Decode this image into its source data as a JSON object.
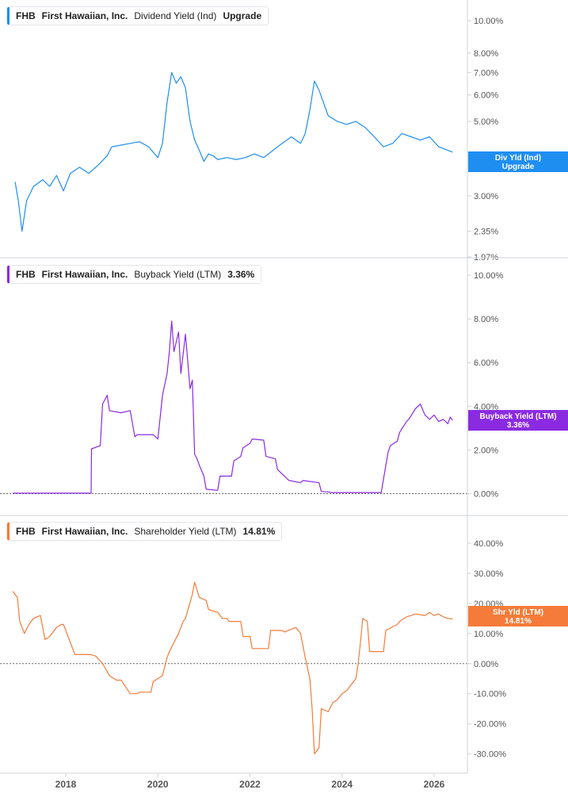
{
  "ticker": "FHB",
  "company": "First Hawaiian, Inc.",
  "colors": {
    "dividend": "#1f8ef1",
    "buyback": "#8a2be2",
    "shareholder": "#f47b3a",
    "grid_axis": "#cfd3d8",
    "tick_text": "#555555"
  },
  "panels": {
    "dividend": {
      "legend_metric": "Dividend Yield (Ind)",
      "legend_value": "Upgrade",
      "badge_line1": "Div Yld (Ind)",
      "badge_line2": "Upgrade"
    },
    "buyback": {
      "legend_metric": "Buyback Yield (LTM)",
      "legend_value": "3.36%",
      "badge_line1": "Buyback Yield (LTM)",
      "badge_line2": "3.36%"
    },
    "shareholder": {
      "legend_metric": "Shareholder Yield (LTM)",
      "legend_value": "14.81%",
      "badge_line1": "Shr Yld (LTM)",
      "badge_line2": "14.81%"
    }
  },
  "chart_data": [
    {
      "type": "line",
      "name": "Dividend Yield (Ind)",
      "scale": "log",
      "ylim": [
        1.97,
        10.0
      ],
      "xlim": [
        2016.85,
        2026.45
      ],
      "x_ticks": [
        "2018",
        "2020",
        "2022",
        "2024",
        "2026"
      ],
      "y_ticks": [
        {
          "v": 10.0,
          "label": "10.00%"
        },
        {
          "v": 8.0,
          "label": "8.00%"
        },
        {
          "v": 7.0,
          "label": "7.00%"
        },
        {
          "v": 6.0,
          "label": "6.00%"
        },
        {
          "v": 5.0,
          "label": "5.00%"
        },
        {
          "v": 3.0,
          "label": "3.00%"
        },
        {
          "v": 2.35,
          "label": "2.35%"
        },
        {
          "v": 1.97,
          "label": "1.97%"
        }
      ],
      "x": [
        2016.9,
        2016.97,
        2017.05,
        2017.15,
        2017.3,
        2017.5,
        2017.65,
        2017.8,
        2017.95,
        2018.1,
        2018.3,
        2018.5,
        2018.7,
        2018.9,
        2019.0,
        2019.2,
        2019.4,
        2019.6,
        2019.8,
        2020.0,
        2020.1,
        2020.2,
        2020.3,
        2020.4,
        2020.5,
        2020.6,
        2020.7,
        2020.8,
        2020.9,
        2021.0,
        2021.1,
        2021.2,
        2021.3,
        2021.5,
        2021.7,
        2021.9,
        2022.1,
        2022.3,
        2022.5,
        2022.7,
        2022.9,
        2023.1,
        2023.2,
        2023.3,
        2023.4,
        2023.5,
        2023.7,
        2023.9,
        2024.1,
        2024.3,
        2024.5,
        2024.7,
        2024.9,
        2025.1,
        2025.3,
        2025.5,
        2025.7,
        2025.9,
        2026.1,
        2026.3,
        2026.4
      ],
      "values": [
        3.3,
        2.9,
        2.35,
        2.9,
        3.2,
        3.35,
        3.2,
        3.45,
        3.1,
        3.5,
        3.65,
        3.5,
        3.7,
        3.95,
        4.2,
        4.25,
        4.3,
        4.35,
        4.2,
        3.9,
        4.3,
        5.7,
        7.0,
        6.5,
        6.8,
        6.3,
        5.0,
        4.4,
        4.1,
        3.8,
        4.0,
        3.95,
        3.85,
        3.9,
        3.85,
        3.9,
        4.0,
        3.9,
        4.1,
        4.3,
        4.5,
        4.3,
        4.6,
        5.4,
        6.6,
        6.2,
        5.2,
        5.0,
        4.9,
        5.0,
        4.8,
        4.5,
        4.2,
        4.3,
        4.6,
        4.5,
        4.4,
        4.5,
        4.2,
        4.1,
        4.05
      ]
    },
    {
      "type": "line",
      "name": "Buyback Yield (LTM)",
      "scale": "linear",
      "ylim": [
        -1.0,
        10.0
      ],
      "xlim": [
        2016.85,
        2026.45
      ],
      "x_ticks": [
        "2018",
        "2020",
        "2022",
        "2024",
        "2026"
      ],
      "y_ticks": [
        {
          "v": 10.0,
          "label": "10.00%"
        },
        {
          "v": 8.0,
          "label": "8.00%"
        },
        {
          "v": 6.0,
          "label": "6.00%"
        },
        {
          "v": 4.0,
          "label": "4.00%"
        },
        {
          "v": 2.0,
          "label": "2.00%"
        },
        {
          "v": 0.0,
          "label": "0.00%"
        }
      ],
      "zero_line": true,
      "x": [
        2016.85,
        2018.55,
        2018.56,
        2018.75,
        2018.8,
        2018.9,
        2018.95,
        2019.2,
        2019.4,
        2019.5,
        2019.55,
        2019.9,
        2020.0,
        2020.05,
        2020.1,
        2020.2,
        2020.25,
        2020.3,
        2020.35,
        2020.45,
        2020.5,
        2020.6,
        2020.7,
        2020.75,
        2020.8,
        2020.85,
        2020.9,
        2021.0,
        2021.05,
        2021.3,
        2021.35,
        2021.6,
        2021.65,
        2021.8,
        2021.85,
        2022.0,
        2022.05,
        2022.3,
        2022.35,
        2022.55,
        2022.6,
        2022.8,
        2022.85,
        2023.1,
        2023.15,
        2023.5,
        2023.55,
        2023.7,
        2023.75,
        2024.0,
        2024.1,
        2024.8,
        2024.85,
        2025.0,
        2025.05,
        2025.2,
        2025.25,
        2025.4,
        2025.45,
        2025.6,
        2025.7,
        2025.8,
        2025.9,
        2026.0,
        2026.1,
        2026.2,
        2026.3,
        2026.35,
        2026.4
      ],
      "values": [
        0.02,
        0.02,
        2.05,
        2.2,
        4.1,
        4.5,
        3.8,
        3.7,
        3.8,
        2.6,
        2.7,
        2.7,
        2.5,
        3.5,
        4.5,
        5.5,
        6.5,
        7.9,
        6.5,
        7.4,
        5.5,
        7.3,
        4.8,
        5.2,
        1.8,
        1.6,
        1.3,
        0.8,
        0.2,
        0.15,
        0.8,
        0.8,
        1.5,
        1.7,
        2.1,
        2.3,
        2.5,
        2.45,
        1.7,
        1.6,
        1.1,
        0.7,
        0.6,
        0.5,
        0.6,
        0.5,
        0.1,
        0.08,
        0.05,
        0.05,
        0.05,
        0.05,
        0.05,
        1.9,
        2.2,
        2.4,
        2.8,
        3.3,
        3.4,
        3.9,
        4.1,
        3.6,
        3.4,
        3.6,
        3.3,
        3.4,
        3.2,
        3.5,
        3.36
      ]
    },
    {
      "type": "line",
      "name": "Shareholder Yield (LTM)",
      "scale": "linear",
      "ylim": [
        -33.0,
        45.0
      ],
      "xlim": [
        2016.85,
        2026.45
      ],
      "x_ticks": [
        "2018",
        "2020",
        "2022",
        "2024",
        "2026"
      ],
      "y_ticks": [
        {
          "v": 40,
          "label": "40.00%"
        },
        {
          "v": 30,
          "label": "30.00%"
        },
        {
          "v": 20,
          "label": "20.00%"
        },
        {
          "v": 10,
          "label": "10.00%"
        },
        {
          "v": 0,
          "label": "0.00%"
        },
        {
          "v": -10,
          "label": "-10.00%"
        },
        {
          "v": -20,
          "label": "-20.00%"
        },
        {
          "v": -30,
          "label": "-30.00%"
        }
      ],
      "zero_line": true,
      "x": [
        2016.85,
        2016.95,
        2017.0,
        2017.1,
        2017.2,
        2017.3,
        2017.45,
        2017.55,
        2017.65,
        2017.8,
        2017.9,
        2017.95,
        2018.2,
        2018.45,
        2018.55,
        2018.65,
        2018.8,
        2018.95,
        2019.1,
        2019.2,
        2019.4,
        2019.55,
        2019.6,
        2019.85,
        2019.9,
        2020.1,
        2020.2,
        2020.25,
        2020.35,
        2020.45,
        2020.55,
        2020.6,
        2020.75,
        2020.8,
        2020.9,
        2021.05,
        2021.1,
        2021.3,
        2021.4,
        2021.5,
        2021.55,
        2021.8,
        2021.85,
        2022.0,
        2022.05,
        2022.4,
        2022.45,
        2022.7,
        2022.75,
        2023.0,
        2023.05,
        2023.1,
        2023.2,
        2023.3,
        2023.35,
        2023.4,
        2023.5,
        2023.55,
        2023.7,
        2023.8,
        2023.9,
        2024.0,
        2024.1,
        2024.2,
        2024.3,
        2024.35,
        2024.4,
        2024.45,
        2024.55,
        2024.6,
        2024.9,
        2024.95,
        2025.2,
        2025.25,
        2025.4,
        2025.5,
        2025.6,
        2025.8,
        2025.9,
        2026.0,
        2026.1,
        2026.2,
        2026.3,
        2026.4
      ],
      "values": [
        24,
        22,
        14,
        10,
        13,
        15,
        16,
        8,
        9,
        12,
        13,
        13,
        3,
        3,
        3,
        2.5,
        0,
        -4,
        -5.5,
        -5.5,
        -10,
        -10,
        -9.5,
        -9.5,
        -6,
        -4,
        2,
        4,
        7,
        10,
        14,
        15,
        23,
        27,
        22,
        21,
        18,
        17,
        15,
        15,
        14,
        14,
        9,
        9,
        5,
        5,
        11,
        11,
        10.5,
        12,
        11,
        10,
        2,
        -5,
        -15,
        -30,
        -28,
        -15,
        -16,
        -13,
        -12,
        -10,
        -9,
        -7,
        -5,
        0,
        7,
        15,
        14,
        4,
        4,
        11,
        13,
        14,
        15.5,
        16,
        16.5,
        16,
        17,
        16,
        16.5,
        15.5,
        15,
        14.81
      ]
    }
  ]
}
